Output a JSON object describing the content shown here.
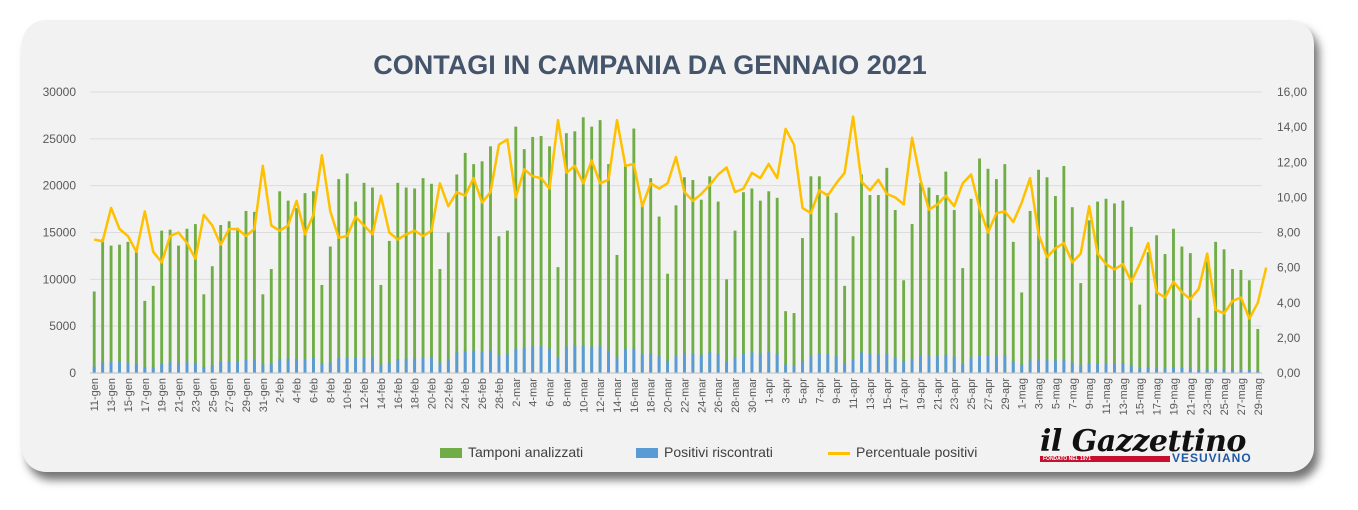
{
  "title": "CONTAGI IN CAMPANIA DA GENNAIO 2021",
  "legend": {
    "tamponi": "Tamponi analizzati",
    "positivi": "Positivi riscontrati",
    "percentuale": "Percentuale positivi"
  },
  "logo": {
    "main": "il Gazzettino",
    "sub": "VESUVIANO",
    "tag": "FONDATO NEL 1971"
  },
  "colors": {
    "tamponi": "#70ad47",
    "positivi": "#5b9bd5",
    "percentuale": "#ffc000",
    "title": "#44546a"
  },
  "chart_data": {
    "type": "bar",
    "title": "CONTAGI IN CAMPANIA DA GENNAIO 2021",
    "start_date": "2021-01-11",
    "end_date": "2021-05-30",
    "x_tick_labels": [
      "11-gen",
      "13-gen",
      "15-gen",
      "17-gen",
      "19-gen",
      "21-gen",
      "23-gen",
      "25-gen",
      "27-gen",
      "29-gen",
      "31-gen",
      "2-feb",
      "4-feb",
      "6-feb",
      "8-feb",
      "10-feb",
      "12-feb",
      "14-feb",
      "16-feb",
      "18-feb",
      "20-feb",
      "22-feb",
      "24-feb",
      "26-feb",
      "28-feb",
      "2-mar",
      "4-mar",
      "6-mar",
      "8-mar",
      "10-mar",
      "12-mar",
      "14-mar",
      "16-mar",
      "18-mar",
      "20-mar",
      "22-mar",
      "24-mar",
      "26-mar",
      "28-mar",
      "30-mar",
      "1-apr",
      "3-apr",
      "5-apr",
      "7-apr",
      "9-apr",
      "11-apr",
      "13-apr",
      "15-apr",
      "17-apr",
      "19-apr",
      "21-apr",
      "23-apr",
      "25-apr",
      "27-apr",
      "29-apr",
      "1-mag",
      "3-mag",
      "5-mag",
      "7-mag",
      "9-mag",
      "11-mag",
      "13-mag",
      "15-mag",
      "17-mag",
      "19-mag",
      "21-mag",
      "23-mag",
      "25-mag",
      "27-mag",
      "29-mag"
    ],
    "y_ticks": [
      "0",
      "5000",
      "10000",
      "15000",
      "20000",
      "25000",
      "30000"
    ],
    "y2_ticks": [
      "0,00",
      "2,00",
      "4,00",
      "6,00",
      "8,00",
      "10,00",
      "12,00",
      "14,00",
      "16,00"
    ],
    "ylim": [
      0,
      30000
    ],
    "y2lim": [
      0,
      16
    ],
    "tamponi": [
      8700,
      14300,
      13600,
      13700,
      14000,
      13200,
      7700,
      9300,
      15200,
      15300,
      13600,
      15400,
      15900,
      8400,
      11400,
      15800,
      16200,
      15500,
      17300,
      17200,
      8400,
      11100,
      19400,
      18400,
      17600,
      19200,
      19400,
      9400,
      13500,
      20700,
      21300,
      18300,
      20300,
      19800,
      9400,
      14100,
      20300,
      19800,
      19700,
      20800,
      20200,
      11100,
      15000,
      21200,
      23500,
      22300,
      22600,
      24200,
      14600,
      15200,
      26300,
      23900,
      25200,
      25300,
      24200,
      11300,
      25600,
      25800,
      27300,
      26300,
      27000,
      22300,
      12600,
      22200,
      26100,
      18300,
      20800,
      16700,
      10600,
      17900,
      20900,
      20600,
      18500,
      21000,
      18300,
      10000,
      15200,
      19300,
      19700,
      18400,
      19400,
      18700,
      6600,
      6400,
      14400,
      21000,
      21000,
      19200,
      17100,
      9300,
      14600,
      21200,
      19000,
      19000,
      21900,
      17400,
      9900,
      15900,
      20300,
      19800,
      19000,
      21500,
      17400,
      11200,
      18600,
      22900,
      21800,
      20700,
      22300,
      14000,
      8600,
      17300,
      21700,
      20900,
      18900,
      22100,
      17700,
      9600,
      16300,
      18300,
      18600,
      18100,
      18400,
      15600,
      7300,
      12900,
      14700,
      12700,
      15400,
      13500,
      12800,
      5900,
      11900,
      14000,
      13200,
      11100,
      11000,
      9900,
      4700
    ],
    "positivi": [
      700,
      1100,
      1200,
      1200,
      1100,
      1000,
      600,
      650,
      1000,
      1200,
      1100,
      1150,
      1100,
      650,
      850,
      1200,
      1300,
      1250,
      1400,
      1400,
      900,
      1000,
      1500,
      1550,
      1500,
      1500,
      1600,
      1050,
      1150,
      1600,
      1650,
      1600,
      1650,
      1600,
      900,
      1100,
      1500,
      1550,
      1550,
      1650,
      1650,
      1100,
      1450,
      2200,
      2350,
      2400,
      2300,
      2400,
      1950,
      2000,
      2600,
      2700,
      2850,
      2850,
      2600,
      1600,
      2800,
      2950,
      2950,
      2800,
      2950,
      2400,
      1700,
      2600,
      2600,
      2000,
      2100,
      1800,
      1300,
      1800,
      2100,
      2050,
      1950,
      2200,
      2050,
      1200,
      1700,
      2100,
      2200,
      2050,
      2300,
      2100,
      900,
      850,
      1300,
      1900,
      2100,
      2000,
      1800,
      1050,
      1450,
      2200,
      2100,
      2000,
      2100,
      1650,
      1300,
      1500,
      1850,
      1800,
      1800,
      1950,
      1750,
      1000,
      1600,
      1800,
      1900,
      1900,
      1900,
      1250,
      900,
      1350,
      1400,
      1450,
      1350,
      1400,
      1100,
      800,
      1100,
      1050,
      1050,
      1000,
      1050,
      800,
      500,
      600,
      500,
      500,
      650,
      550,
      500,
      350,
      400,
      450,
      450,
      400,
      350,
      350,
      250
    ],
    "percentuale": [
      7.6,
      7.5,
      9.4,
      8.2,
      7.8,
      6.9,
      9.2,
      6.9,
      6.3,
      7.8,
      8.0,
      7.4,
      6.5,
      9.0,
      8.4,
      7.3,
      8.2,
      8.2,
      7.8,
      8.2,
      11.8,
      8.4,
      8.1,
      8.4,
      9.8,
      7.9,
      9.0,
      12.4,
      9.2,
      7.7,
      7.8,
      8.9,
      8.4,
      7.9,
      10.1,
      8.0,
      7.6,
      7.9,
      8.1,
      7.8,
      8.1,
      10.8,
      9.5,
      10.3,
      10.1,
      11.1,
      9.7,
      10.3,
      13.0,
      13.3,
      10.0,
      11.6,
      11.2,
      11.1,
      10.5,
      14.4,
      11.4,
      11.8,
      10.8,
      12.1,
      10.8,
      11.0,
      14.4,
      11.8,
      11.9,
      9.5,
      10.8,
      10.5,
      10.8,
      12.3,
      10.3,
      9.8,
      10.2,
      10.7,
      11.3,
      11.7,
      10.3,
      10.5,
      11.4,
      11.1,
      11.9,
      11.1,
      13.9,
      13.0,
      9.4,
      9.1,
      10.4,
      10.1,
      10.8,
      11.4,
      14.6,
      10.9,
      10.4,
      11.0,
      10.2,
      10.0,
      9.6,
      13.4,
      11.0,
      9.3,
      9.6,
      10.1,
      9.5,
      10.8,
      11.3,
      9.4,
      8.0,
      9.1,
      9.2,
      8.6,
      9.7,
      11.1,
      7.9,
      6.6,
      7.1,
      7.4,
      6.3,
      6.8,
      9.5,
      6.8,
      6.2,
      5.9,
      6.2,
      5.2,
      6.2,
      7.4,
      4.6,
      4.3,
      5.2,
      4.6,
      4.2,
      4.8,
      6.8,
      3.6,
      3.4,
      4.1,
      4.3,
      3.1,
      4.0,
      6.0
    ]
  }
}
